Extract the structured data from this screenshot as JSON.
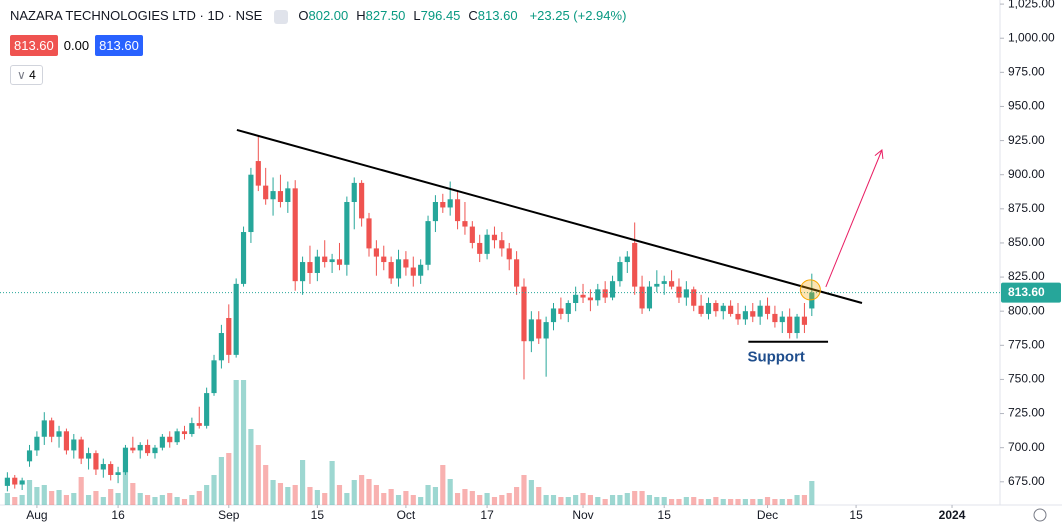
{
  "chart_data": {
    "type": "candlestick",
    "title": "NAZARA TECHNOLOGIES LTD · 1D · NSE",
    "ohlc_header": [
      {
        "key": "O",
        "value": "802.00"
      },
      {
        "key": "H",
        "value": "827.50"
      },
      {
        "key": "L",
        "value": "796.45"
      },
      {
        "key": "C",
        "value": "813.60"
      }
    ],
    "change": "+23.25 (+2.94%)",
    "badges": [
      "813.60",
      "0.00",
      "813.60"
    ],
    "indicator": "4",
    "last_price": 813.6,
    "last_price_label": "813.60",
    "up_color": "#26a69a",
    "down_color": "#ef5350",
    "ohlc": [
      [
        672,
        682,
        668,
        678
      ],
      [
        678,
        680,
        670,
        673
      ],
      [
        673,
        678,
        669,
        676
      ],
      [
        690,
        702,
        686,
        698
      ],
      [
        698,
        712,
        694,
        708
      ],
      [
        708,
        726,
        702,
        720
      ],
      [
        720,
        722,
        704,
        708
      ],
      [
        708,
        716,
        700,
        712
      ],
      [
        712,
        714,
        695,
        698
      ],
      [
        698,
        710,
        692,
        706
      ],
      [
        706,
        708,
        688,
        692
      ],
      [
        692,
        700,
        684,
        696
      ],
      [
        696,
        698,
        680,
        684
      ],
      [
        684,
        692,
        678,
        688
      ],
      [
        688,
        690,
        676,
        680
      ],
      [
        680,
        686,
        674,
        682
      ],
      [
        682,
        702,
        680,
        700
      ],
      [
        700,
        708,
        696,
        698
      ],
      [
        698,
        704,
        692,
        702
      ],
      [
        702,
        706,
        694,
        696
      ],
      [
        696,
        702,
        692,
        700
      ],
      [
        700,
        710,
        698,
        708
      ],
      [
        708,
        712,
        700,
        704
      ],
      [
        704,
        714,
        702,
        712
      ],
      [
        712,
        716,
        706,
        710
      ],
      [
        710,
        722,
        708,
        718
      ],
      [
        718,
        730,
        714,
        716
      ],
      [
        716,
        744,
        714,
        740
      ],
      [
        740,
        768,
        738,
        764
      ],
      [
        764,
        790,
        758,
        784
      ],
      [
        795,
        805,
        762,
        768
      ],
      [
        768,
        824,
        766,
        820
      ],
      [
        820,
        862,
        818,
        858
      ],
      [
        858,
        905,
        850,
        900
      ],
      [
        910,
        928,
        888,
        892
      ],
      [
        892,
        905,
        878,
        882
      ],
      [
        882,
        898,
        870,
        888
      ],
      [
        888,
        900,
        876,
        880
      ],
      [
        880,
        895,
        872,
        890
      ],
      [
        890,
        896,
        815,
        822
      ],
      [
        822,
        840,
        812,
        836
      ],
      [
        836,
        848,
        820,
        828
      ],
      [
        828,
        845,
        822,
        840
      ],
      [
        840,
        852,
        832,
        836
      ],
      [
        836,
        842,
        828,
        838
      ],
      [
        838,
        850,
        830,
        834
      ],
      [
        834,
        884,
        826,
        880
      ],
      [
        880,
        898,
        860,
        894
      ],
      [
        894,
        896,
        862,
        868
      ],
      [
        868,
        872,
        840,
        846
      ],
      [
        846,
        852,
        826,
        840
      ],
      [
        840,
        848,
        830,
        836
      ],
      [
        836,
        840,
        820,
        824
      ],
      [
        824,
        845,
        818,
        838
      ],
      [
        838,
        844,
        826,
        832
      ],
      [
        832,
        840,
        818,
        826
      ],
      [
        826,
        838,
        820,
        834
      ],
      [
        834,
        870,
        830,
        866
      ],
      [
        866,
        885,
        858,
        880
      ],
      [
        880,
        886,
        872,
        876
      ],
      [
        876,
        895,
        870,
        882
      ],
      [
        882,
        888,
        860,
        866
      ],
      [
        866,
        880,
        856,
        862
      ],
      [
        862,
        866,
        846,
        850
      ],
      [
        850,
        856,
        836,
        842
      ],
      [
        842,
        860,
        838,
        856
      ],
      [
        856,
        862,
        846,
        852
      ],
      [
        852,
        858,
        840,
        846
      ],
      [
        846,
        850,
        830,
        838
      ],
      [
        838,
        844,
        812,
        818
      ],
      [
        818,
        824,
        750,
        778
      ],
      [
        778,
        800,
        770,
        794
      ],
      [
        794,
        800,
        776,
        780
      ],
      [
        780,
        796,
        752,
        792
      ],
      [
        792,
        806,
        786,
        802
      ],
      [
        802,
        810,
        794,
        798
      ],
      [
        798,
        808,
        792,
        806
      ],
      [
        806,
        818,
        800,
        812
      ],
      [
        812,
        820,
        806,
        810
      ],
      [
        810,
        816,
        800,
        808
      ],
      [
        808,
        820,
        804,
        816
      ],
      [
        816,
        822,
        806,
        810
      ],
      [
        810,
        826,
        808,
        822
      ],
      [
        822,
        840,
        818,
        836
      ],
      [
        836,
        844,
        828,
        840
      ],
      [
        850,
        865,
        812,
        818
      ],
      [
        818,
        826,
        798,
        802
      ],
      [
        802,
        822,
        800,
        818
      ],
      [
        818,
        830,
        814,
        820
      ],
      [
        820,
        826,
        812,
        822
      ],
      [
        822,
        830,
        816,
        818
      ],
      [
        818,
        824,
        806,
        810
      ],
      [
        810,
        822,
        804,
        816
      ],
      [
        816,
        818,
        800,
        804
      ],
      [
        804,
        812,
        796,
        798
      ],
      [
        798,
        810,
        794,
        806
      ],
      [
        806,
        808,
        796,
        800
      ],
      [
        800,
        806,
        794,
        804
      ],
      [
        804,
        808,
        796,
        798
      ],
      [
        798,
        806,
        790,
        794
      ],
      [
        794,
        804,
        790,
        800
      ],
      [
        800,
        806,
        792,
        796
      ],
      [
        796,
        808,
        790,
        804
      ],
      [
        804,
        810,
        794,
        798
      ],
      [
        798,
        804,
        788,
        792
      ],
      [
        792,
        800,
        784,
        796
      ],
      [
        796,
        802,
        780,
        784
      ],
      [
        784,
        798,
        780,
        796
      ],
      [
        796,
        806,
        784,
        790
      ],
      [
        802,
        827.5,
        796.45,
        813.6
      ]
    ],
    "volume": [
      12,
      8,
      10,
      25,
      18,
      20,
      14,
      15,
      10,
      12,
      28,
      10,
      14,
      8,
      16,
      12,
      34,
      22,
      12,
      10,
      8,
      10,
      12,
      8,
      6,
      10,
      14,
      20,
      30,
      48,
      52,
      125,
      125,
      76,
      60,
      40,
      25,
      22,
      18,
      20,
      45,
      18,
      15,
      12,
      44,
      20,
      12,
      25,
      30,
      26,
      20,
      12,
      16,
      10,
      14,
      10,
      8,
      20,
      18,
      40,
      26,
      12,
      16,
      14,
      10,
      12,
      8,
      10,
      12,
      18,
      30,
      25,
      18,
      10,
      10,
      8,
      8,
      10,
      12,
      10,
      8,
      6,
      10,
      10,
      12,
      14,
      14,
      10,
      8,
      8,
      6,
      6,
      8,
      8,
      6,
      6,
      8,
      6,
      6,
      6,
      6,
      6,
      6,
      8,
      6,
      6,
      6,
      10,
      10,
      24
    ],
    "vlim": [
      0,
      130
    ],
    "xlim": [
      -1,
      134.5
    ],
    "xticks": [
      {
        "value": 4,
        "label": "Aug"
      },
      {
        "value": 15,
        "label": "16"
      },
      {
        "value": 30,
        "label": "Sep"
      },
      {
        "value": 42,
        "label": "15"
      },
      {
        "value": 54,
        "label": "Oct"
      },
      {
        "value": 65,
        "label": "17"
      },
      {
        "value": 78,
        "label": "Nov"
      },
      {
        "value": 89,
        "label": "15"
      },
      {
        "value": 103,
        "label": "Dec"
      },
      {
        "value": 115,
        "label": "15"
      },
      {
        "value": 128,
        "label": "2024",
        "bold": true
      }
    ],
    "ylim": [
      658,
      1028
    ],
    "yticks": [
      {
        "value": 675,
        "label": "675.00"
      },
      {
        "value": 700,
        "label": "700.00"
      },
      {
        "value": 725,
        "label": "725.00"
      },
      {
        "value": 750,
        "label": "750.00"
      },
      {
        "value": 775,
        "label": "775.00"
      },
      {
        "value": 800,
        "label": "800.00"
      },
      {
        "value": 825,
        "label": "825.00"
      },
      {
        "value": 850,
        "label": "850.00"
      },
      {
        "value": 875,
        "label": "875.00"
      },
      {
        "value": 900,
        "label": "900.00"
      },
      {
        "value": 925,
        "label": "925.00"
      },
      {
        "value": 950,
        "label": "950.00"
      },
      {
        "value": 975,
        "label": "975.00"
      },
      {
        "value": 1000,
        "label": "1,000.00"
      },
      {
        "value": 1025,
        "label": "1,025.00"
      }
    ],
    "annotations": {
      "trendline": {
        "points": [
          [
            31.1,
            932.8
          ],
          [
            115.8,
            806
          ]
        ],
        "color": "#000000"
      },
      "support": {
        "points": [
          [
            100.4,
            777.6
          ],
          [
            111.2,
            777.6
          ]
        ],
        "color": "#000000",
        "label": "Support",
        "label_color": "#1e4d8c"
      },
      "arrow": {
        "points": [
          [
            110.9,
            817.8
          ],
          [
            118.5,
            918.1
          ]
        ],
        "color": "#e91e63"
      },
      "circle": {
        "point": [
          108.8,
          815.6
        ],
        "color": "#f7a600"
      }
    }
  }
}
